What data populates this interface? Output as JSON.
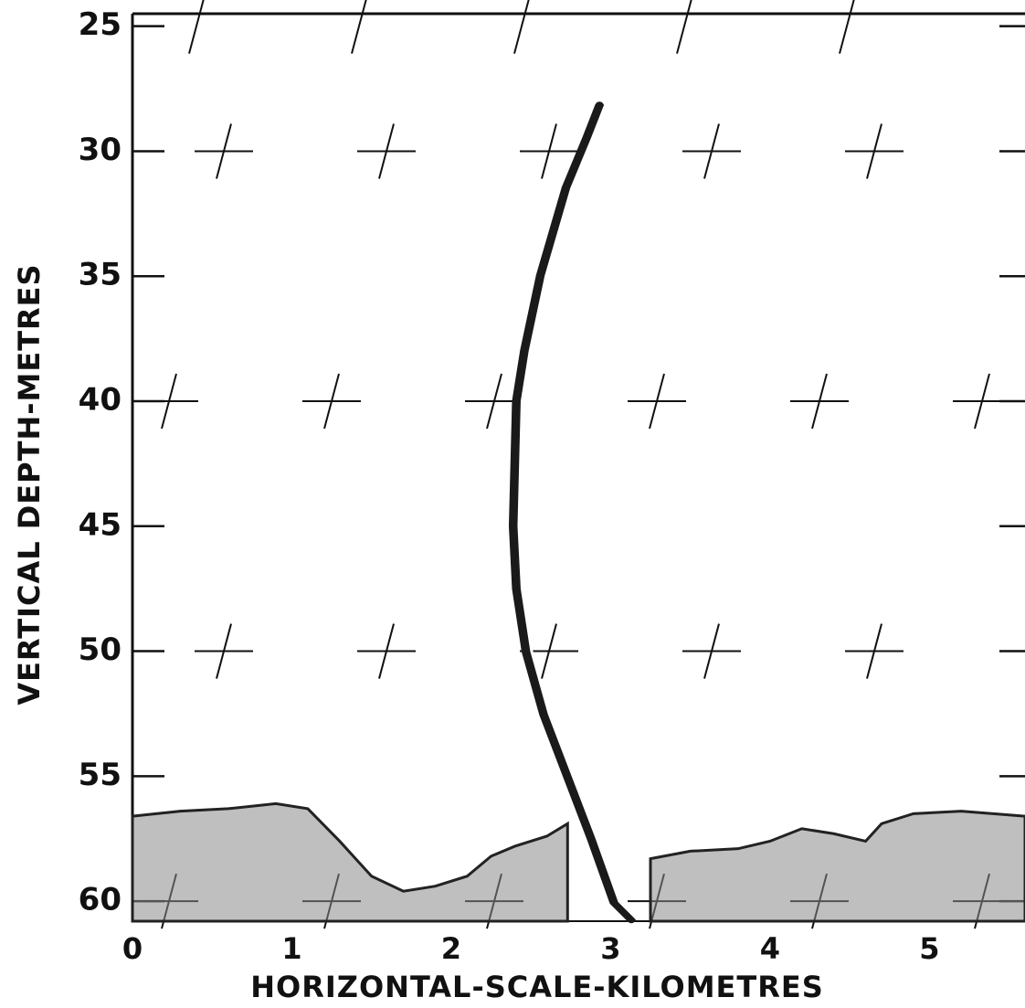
{
  "chart_data": {
    "type": "echogram",
    "x_label": "HORIZONTAL-SCALE-KILOMETRES",
    "y_label": "VERTICAL DEPTH-METRES",
    "xlim": [
      0,
      5.6
    ],
    "xticks": [
      0,
      1,
      2,
      3,
      4,
      5
    ],
    "ylim": [
      24.5,
      60.8
    ],
    "yticks": [
      25,
      30,
      35,
      40,
      45,
      50,
      55,
      60
    ],
    "y_inverted": true,
    "series": [
      {
        "color": "#1a1a1a",
        "x": [
          2.93,
          2.85,
          2.72,
          2.56,
          2.46,
          2.41,
          2.39,
          2.41,
          2.47,
          2.58,
          2.73,
          2.88,
          3.02,
          3.13
        ],
        "values": [
          28.2,
          29.5,
          31.5,
          35,
          38,
          40,
          45,
          47.5,
          50,
          52.5,
          55,
          57.5,
          60,
          60.7
        ]
      },
      {
        "color": "#8a8a8a",
        "x": [
          0,
          0.3,
          0.6,
          0.9,
          1.1,
          1.3,
          1.5,
          1.7,
          1.9,
          2.1,
          2.25,
          2.4,
          2.6,
          2.73,
          3.0,
          3.25,
          3.5,
          3.8,
          4.0,
          4.2,
          4.4,
          4.6,
          4.7,
          4.9,
          5.2,
          5.6
        ],
        "values": [
          56.6,
          56.4,
          56.3,
          56.1,
          56.3,
          57.6,
          59.0,
          59.6,
          59.4,
          59.0,
          58.2,
          57.8,
          57.4,
          56.9,
          null,
          58.3,
          58.0,
          57.9,
          57.6,
          57.1,
          57.3,
          57.6,
          56.9,
          56.5,
          56.4,
          56.6
        ]
      }
    ]
  }
}
